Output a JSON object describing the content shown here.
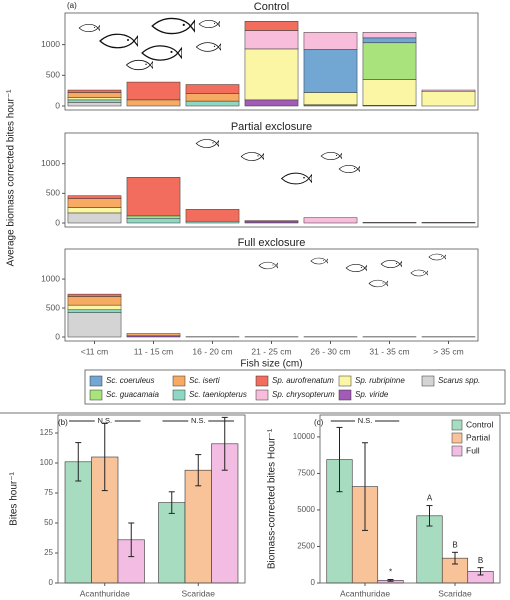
{
  "chart_data": [
    {
      "type": "stacked_bar",
      "label": "(a)",
      "ylabel": "Average biomass corrected bites hour⁻¹",
      "xlabel": "Fish size (cm)",
      "categories": [
        "<11 cm",
        "11 - 15 cm",
        "16 - 20 cm",
        "21 - 25 cm",
        "26 - 30 cm",
        "31 - 35 cm",
        "> 35 cm"
      ],
      "ylim": [
        0,
        1450
      ],
      "yticks": [
        0,
        500,
        1000
      ],
      "series": [
        {
          "name": "Scarus spp.",
          "color": "#d4d4d4"
        },
        {
          "name": "Sp. viride",
          "color": "#a35bb8"
        },
        {
          "name": "Sc. taeniopterus",
          "color": "#8fd6c3"
        },
        {
          "name": "Sp. rubripinne",
          "color": "#fbf6a4"
        },
        {
          "name": "Sc. iserti",
          "color": "#f6aa62"
        },
        {
          "name": "Sc. guacamaia",
          "color": "#a9e37c"
        },
        {
          "name": "Sc. coeruleus",
          "color": "#72a6d3"
        },
        {
          "name": "Sp. chrysopterum",
          "color": "#f8bddb"
        },
        {
          "name": "Sp. aurofrenatum",
          "color": "#f26d5d"
        }
      ],
      "panels": [
        {
          "title": "Control",
          "values": [
            [
              60,
              0,
              0,
              0,
              0,
              0,
              0
            ],
            [
              0,
              0,
              0,
              100,
              20,
              10,
              0
            ],
            [
              40,
              0,
              80,
              0,
              0,
              0,
              0
            ],
            [
              40,
              0,
              0,
              830,
              200,
              420,
              240
            ],
            [
              80,
              100,
              120,
              0,
              0,
              0,
              0
            ],
            [
              0,
              0,
              0,
              0,
              0,
              600,
              0
            ],
            [
              0,
              0,
              0,
              0,
              700,
              80,
              0
            ],
            [
              0,
              0,
              0,
              300,
              280,
              90,
              20
            ],
            [
              40,
              290,
              150,
              150,
              0,
              0,
              0
            ]
          ]
        },
        {
          "title": "Partial exclosure",
          "values": [
            [
              170,
              0,
              0,
              0,
              0,
              0,
              0
            ],
            [
              0,
              0,
              0,
              20,
              0,
              0,
              0
            ],
            [
              0,
              80,
              30,
              0,
              0,
              0,
              0
            ],
            [
              90,
              0,
              0,
              0,
              0,
              5,
              5
            ],
            [
              150,
              0,
              0,
              0,
              0,
              0,
              0
            ],
            [
              0,
              40,
              0,
              0,
              0,
              0,
              0
            ],
            [
              0,
              0,
              0,
              0,
              0,
              0,
              0
            ],
            [
              0,
              0,
              0,
              0,
              90,
              5,
              5
            ],
            [
              50,
              650,
              200,
              20,
              0,
              0,
              0
            ]
          ]
        },
        {
          "title": "Full exclosure",
          "values": [
            [
              420,
              0,
              0,
              0,
              0,
              0,
              0
            ],
            [
              0,
              20,
              0,
              0,
              0,
              0,
              0
            ],
            [
              50,
              0,
              5,
              0,
              0,
              0,
              0
            ],
            [
              80,
              0,
              0,
              0,
              0,
              0,
              0
            ],
            [
              150,
              40,
              0,
              0,
              0,
              0,
              0
            ],
            [
              0,
              0,
              0,
              0,
              0,
              0,
              0
            ],
            [
              0,
              0,
              0,
              0,
              0,
              0,
              0
            ],
            [
              0,
              0,
              0,
              5,
              5,
              5,
              5
            ],
            [
              40,
              0,
              0,
              0,
              0,
              0,
              0
            ]
          ]
        }
      ]
    },
    {
      "type": "grouped_bar",
      "label": "(b)",
      "ylabel": "Bites hour⁻¹",
      "categories": [
        "Acanthuridae",
        "Scaridae"
      ],
      "ylim": [
        0,
        140
      ],
      "yticks": [
        0,
        25,
        50,
        75,
        100,
        125
      ],
      "series": [
        {
          "color": "#a8dcc0",
          "values": [
            101,
            67
          ],
          "errors": [
            16,
            9
          ]
        },
        {
          "color": "#f9c39a",
          "values": [
            105,
            94
          ],
          "errors": [
            28,
            13
          ]
        },
        {
          "color": "#f2bce3",
          "values": [
            36,
            116
          ],
          "errors": [
            14,
            22
          ]
        }
      ],
      "annotations": [
        {
          "text": "N.S.",
          "category": 0
        },
        {
          "text": "N.S.",
          "category": 1
        }
      ]
    },
    {
      "type": "grouped_bar",
      "label": "(c)",
      "ylabel": "Biomass-corrected bites Hour⁻¹",
      "categories": [
        "Acanthuridae",
        "Scaridae"
      ],
      "ylim": [
        0,
        11500
      ],
      "yticks": [
        0,
        2500,
        5000,
        7500,
        10000
      ],
      "series": [
        {
          "name": "Control",
          "color": "#a8dcc0",
          "values": [
            8450,
            4600
          ],
          "errors": [
            2200,
            700
          ]
        },
        {
          "name": "Partial",
          "color": "#f9c39a",
          "values": [
            6600,
            1700
          ],
          "errors": [
            3000,
            400
          ]
        },
        {
          "name": "Full",
          "color": "#f2bce3",
          "values": [
            180,
            800
          ],
          "errors": [
            60,
            250
          ]
        }
      ],
      "annotations": [
        {
          "text": "N.S.",
          "category": 0
        },
        {
          "text": "*",
          "category": 0,
          "series": 2
        },
        {
          "text": "A",
          "category": 1,
          "series": 0
        },
        {
          "text": "B",
          "category": 1,
          "series": 1
        },
        {
          "text": "B",
          "category": 1,
          "series": 2
        }
      ]
    }
  ]
}
